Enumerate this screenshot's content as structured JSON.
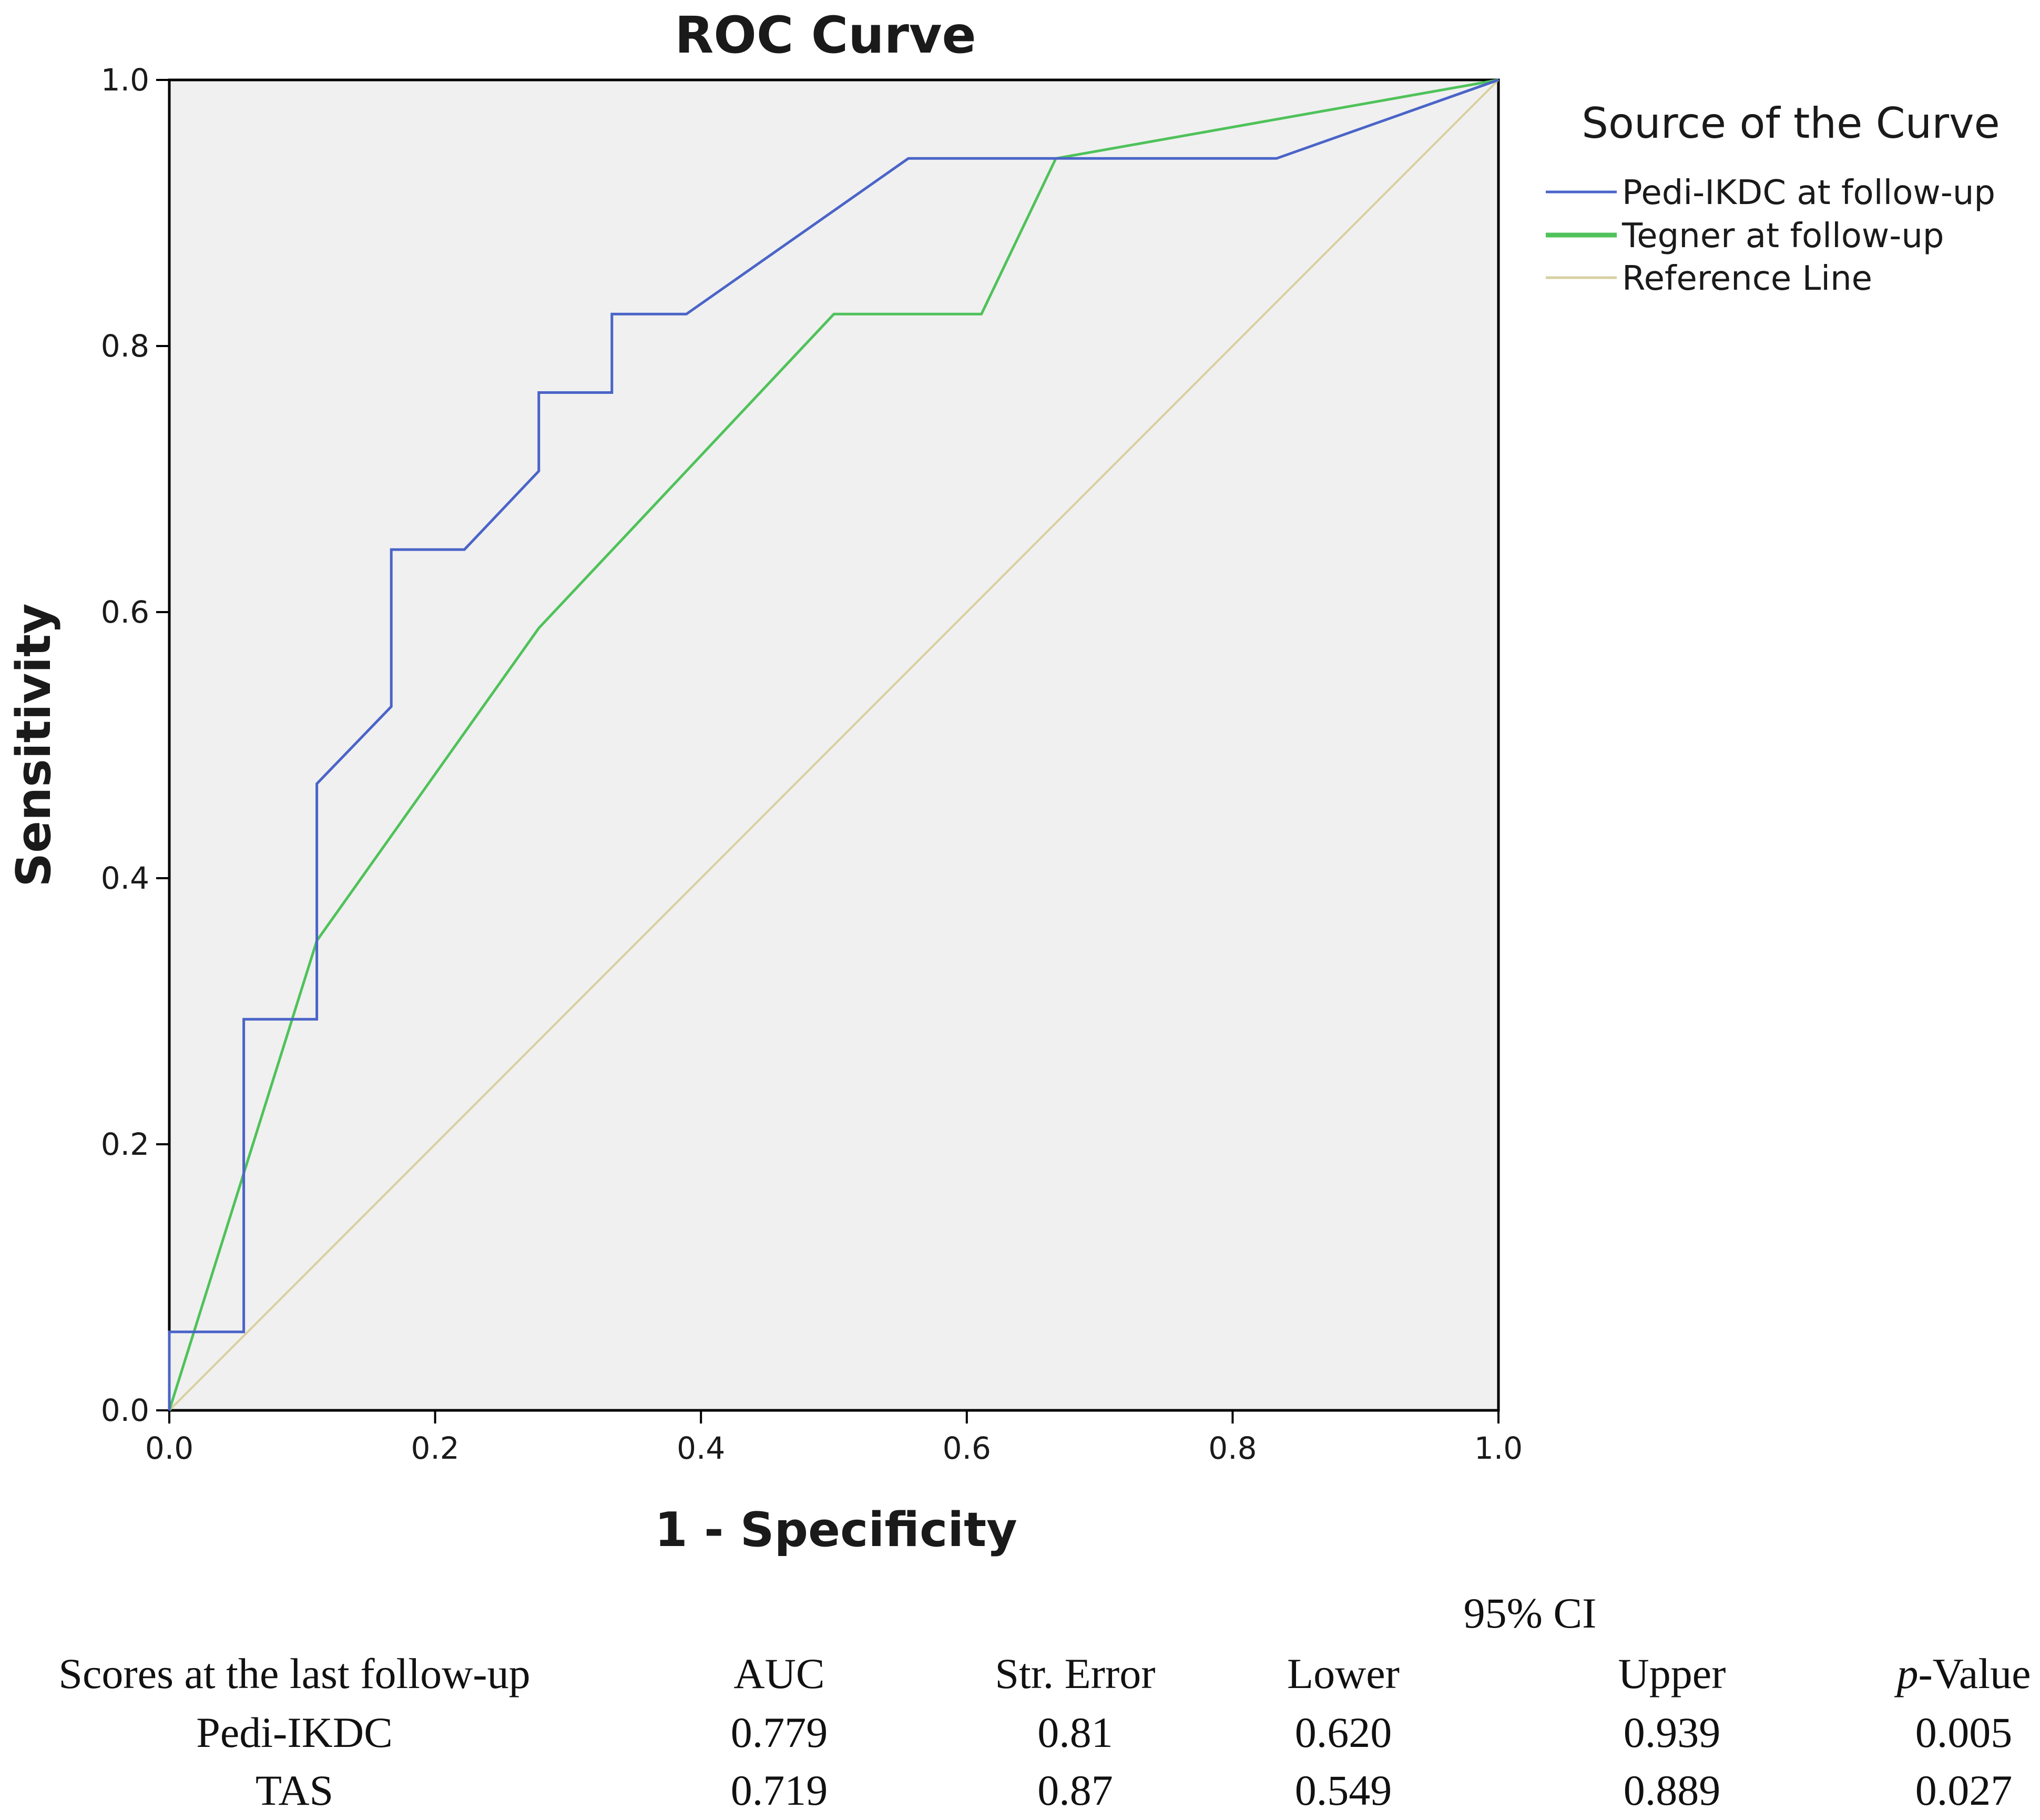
{
  "chart_data": {
    "type": "line",
    "title": "ROC Curve",
    "xlabel": "1 - Specificity",
    "ylabel": "Sensitivity",
    "xlim": [
      0.0,
      1.0
    ],
    "ylim": [
      0.0,
      1.0
    ],
    "x_ticks": [
      "0.0",
      "0.2",
      "0.4",
      "0.6",
      "0.8",
      "1.0"
    ],
    "y_ticks": [
      "0.0",
      "0.2",
      "0.4",
      "0.6",
      "0.8",
      "1.0"
    ],
    "grid": false,
    "legend": {
      "title": "Source of the Curve",
      "position": "right"
    },
    "series": [
      {
        "name": "Pedi-IKDC at follow-up",
        "color": "#4a64c8",
        "x": [
          0.0,
          0.0,
          0.056,
          0.056,
          0.111,
          0.111,
          0.167,
          0.167,
          0.222,
          0.278,
          0.278,
          0.333,
          0.333,
          0.389,
          0.556,
          0.833,
          1.0
        ],
        "y": [
          0.0,
          0.059,
          0.059,
          0.294,
          0.294,
          0.471,
          0.529,
          0.647,
          0.647,
          0.706,
          0.765,
          0.765,
          0.824,
          0.824,
          0.941,
          0.941,
          1.0
        ]
      },
      {
        "name": "Tegner at follow-up",
        "color": "#4fc25a",
        "x": [
          0.0,
          0.111,
          0.278,
          0.5,
          0.611,
          0.667,
          1.0
        ],
        "y": [
          0.0,
          0.353,
          0.588,
          0.824,
          0.824,
          0.941,
          1.0
        ]
      },
      {
        "name": "Reference Line",
        "color": "#d8d0a0",
        "x": [
          0.0,
          1.0
        ],
        "y": [
          0.0,
          1.0
        ]
      }
    ]
  },
  "table": {
    "ci_label": "95% CI",
    "headers": [
      "Scores at the last follow-up",
      "AUC",
      "Str. Error",
      "Lower",
      "Upper",
      "-Value"
    ],
    "p_italic": "p",
    "rows": [
      [
        "Pedi-IKDC",
        "0.779",
        "0.81",
        "0.620",
        "0.939",
        "0.005"
      ],
      [
        "TAS",
        "0.719",
        "0.87",
        "0.549",
        "0.889",
        "0.027"
      ]
    ]
  }
}
